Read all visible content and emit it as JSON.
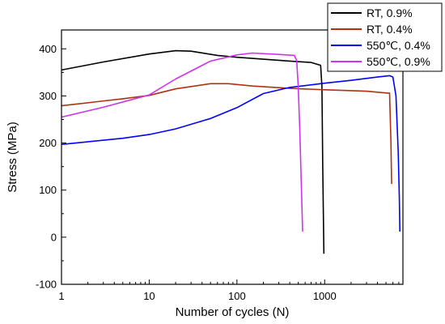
{
  "chart_data": {
    "type": "line",
    "xlabel": "Number of cycles (N)",
    "ylabel": "Stress (MPa)",
    "xscale": "log",
    "xlim": [
      1,
      7800
    ],
    "ylim": [
      -100,
      440
    ],
    "x_ticks": [
      {
        "value": 1,
        "label": "1"
      },
      {
        "value": 10,
        "label": "10"
      },
      {
        "value": 100,
        "label": "100"
      },
      {
        "value": 1000,
        "label": "1000"
      }
    ],
    "y_ticks": [
      -100,
      0,
      100,
      200,
      300,
      400
    ],
    "legend_position": "top-right",
    "series": [
      {
        "name": "RT, 0.9%",
        "color": "#000000",
        "points": [
          [
            1,
            355
          ],
          [
            3,
            372
          ],
          [
            10,
            389
          ],
          [
            20,
            396
          ],
          [
            30,
            395
          ],
          [
            60,
            386
          ],
          [
            100,
            382
          ],
          [
            200,
            378
          ],
          [
            400,
            374
          ],
          [
            700,
            371
          ],
          [
            900,
            365
          ],
          [
            930,
            320
          ],
          [
            950,
            150
          ],
          [
            980,
            -35
          ]
        ]
      },
      {
        "name": "RT, 0.4%",
        "color": "#b03010",
        "points": [
          [
            1,
            279
          ],
          [
            5,
            294
          ],
          [
            10,
            301
          ],
          [
            20,
            315
          ],
          [
            50,
            326
          ],
          [
            80,
            326
          ],
          [
            150,
            321
          ],
          [
            400,
            316
          ],
          [
            1000,
            313
          ],
          [
            3000,
            310
          ],
          [
            5200,
            306
          ],
          [
            5500,
            306
          ],
          [
            5700,
            200
          ],
          [
            5800,
            113
          ]
        ]
      },
      {
        "name": "550℃, 0.4%",
        "color": "#0000ff",
        "points": [
          [
            1,
            197
          ],
          [
            5,
            210
          ],
          [
            10,
            218
          ],
          [
            20,
            230
          ],
          [
            50,
            252
          ],
          [
            100,
            275
          ],
          [
            200,
            305
          ],
          [
            400,
            318
          ],
          [
            1000,
            327
          ],
          [
            2000,
            333
          ],
          [
            4000,
            340
          ],
          [
            5500,
            343
          ],
          [
            6000,
            340
          ],
          [
            6500,
            300
          ],
          [
            6900,
            180
          ],
          [
            7100,
            80
          ],
          [
            7200,
            12
          ]
        ]
      },
      {
        "name": "550℃, 0.9%",
        "color": "#cc33ee",
        "points": [
          [
            1,
            255
          ],
          [
            3,
            276
          ],
          [
            10,
            302
          ],
          [
            20,
            336
          ],
          [
            50,
            374
          ],
          [
            100,
            387
          ],
          [
            150,
            391
          ],
          [
            300,
            388
          ],
          [
            450,
            386
          ],
          [
            480,
            375
          ],
          [
            500,
            320
          ],
          [
            520,
            230
          ],
          [
            540,
            120
          ],
          [
            560,
            12
          ]
        ]
      }
    ]
  }
}
